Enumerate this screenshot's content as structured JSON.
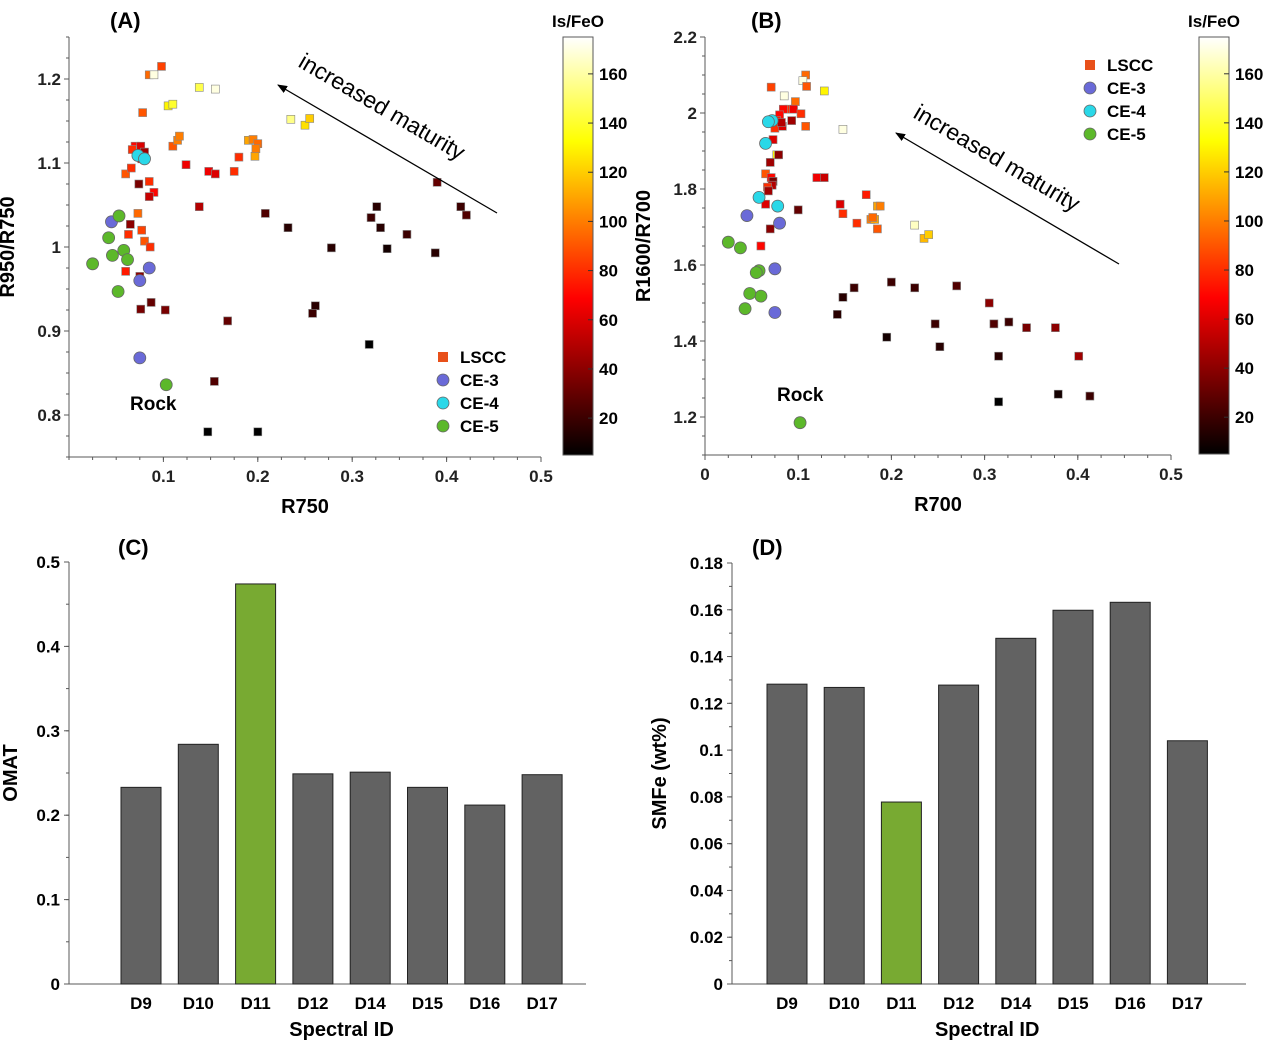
{
  "colors": {
    "bar_gray": "#626262",
    "bar_highlight": "#78aa32",
    "ce3": "#6a6ad8",
    "ce4": "#2ad8e8",
    "ce5": "#5cb82a",
    "rock": "#5cb82a",
    "axis": "#595959"
  },
  "chart_data": [
    {
      "panel_label": "(A)",
      "type": "scatter",
      "xlabel": "R750",
      "ylabel": "R950/R750",
      "xlim": [
        0,
        0.5
      ],
      "ylim": [
        0.75,
        1.25
      ],
      "xticks": [
        "0.1",
        "0.2",
        "0.3",
        "0.4",
        "0.5"
      ],
      "yticks": [
        "0.8",
        "0.9",
        "1",
        "1.1",
        "1.2"
      ],
      "grid": false,
      "legend": {
        "placement": "bottom-right",
        "entries": [
          "LSCC",
          "CE-3",
          "CE-4",
          "CE-5"
        ]
      },
      "colorbar": {
        "title": "Is/FeO",
        "range": [
          5,
          175
        ],
        "ticks": [
          "20",
          "40",
          "60",
          "80",
          "100",
          "120",
          "140",
          "160"
        ]
      },
      "annotations": {
        "arrow_text": "increased maturity",
        "rock_label": "Rock"
      },
      "series": [
        {
          "name": "LSCC",
          "marker": "square",
          "points": [
            [
              0.098,
              1.215,
              85
            ],
            [
              0.085,
              1.205,
              95
            ],
            [
              0.09,
              1.205,
              170
            ],
            [
              0.078,
              1.16,
              90
            ],
            [
              0.07,
              1.12,
              70
            ],
            [
              0.085,
              1.078,
              80
            ],
            [
              0.09,
              1.065,
              70
            ],
            [
              0.06,
              1.087,
              90
            ],
            [
              0.066,
              1.094,
              80
            ],
            [
              0.067,
              1.116,
              80
            ],
            [
              0.076,
              1.12,
              60
            ],
            [
              0.08,
              1.113,
              45
            ],
            [
              0.077,
              1.105,
              60
            ],
            [
              0.085,
              1.06,
              55
            ],
            [
              0.074,
              1.075,
              35
            ],
            [
              0.073,
              1.04,
              95
            ],
            [
              0.077,
              1.02,
              85
            ],
            [
              0.065,
              1.027,
              40
            ],
            [
              0.063,
              1.015,
              80
            ],
            [
              0.08,
              1.007,
              90
            ],
            [
              0.086,
              1.0,
              80
            ],
            [
              0.06,
              0.971,
              75
            ],
            [
              0.075,
              0.965,
              40
            ],
            [
              0.076,
              0.926,
              35
            ],
            [
              0.087,
              0.934,
              30
            ],
            [
              0.102,
              0.925,
              35
            ],
            [
              0.11,
              1.12,
              90
            ],
            [
              0.115,
              1.127,
              100
            ],
            [
              0.117,
              1.132,
              100
            ],
            [
              0.105,
              1.168,
              130
            ],
            [
              0.11,
              1.17,
              140
            ],
            [
              0.138,
              1.19,
              145
            ],
            [
              0.155,
              1.188,
              170
            ],
            [
              0.124,
              1.098,
              65
            ],
            [
              0.138,
              1.048,
              50
            ],
            [
              0.148,
              1.09,
              65
            ],
            [
              0.155,
              1.087,
              60
            ],
            [
              0.175,
              1.09,
              80
            ],
            [
              0.18,
              1.107,
              80
            ],
            [
              0.19,
              1.127,
              110
            ],
            [
              0.197,
              1.108,
              110
            ],
            [
              0.195,
              1.128,
              100
            ],
            [
              0.2,
              1.123,
              95
            ],
            [
              0.198,
              1.117,
              100
            ],
            [
              0.235,
              1.152,
              155
            ],
            [
              0.25,
              1.145,
              125
            ],
            [
              0.255,
              1.153,
              120
            ],
            [
              0.208,
              1.04,
              25
            ],
            [
              0.232,
              1.023,
              15
            ],
            [
              0.278,
              0.999,
              15
            ],
            [
              0.326,
              1.048,
              15
            ],
            [
              0.32,
              1.035,
              20
            ],
            [
              0.33,
              1.023,
              15
            ],
            [
              0.337,
              0.998,
              10
            ],
            [
              0.358,
              1.015,
              20
            ],
            [
              0.39,
              1.077,
              30
            ],
            [
              0.415,
              1.048,
              20
            ],
            [
              0.421,
              1.038,
              25
            ],
            [
              0.388,
              0.993,
              15
            ],
            [
              0.261,
              0.93,
              15
            ],
            [
              0.258,
              0.921,
              20
            ],
            [
              0.168,
              0.912,
              30
            ],
            [
              0.154,
              0.84,
              25
            ],
            [
              0.318,
              0.884,
              5
            ],
            [
              0.147,
              0.78,
              5
            ],
            [
              0.2,
              0.78,
              5
            ]
          ]
        },
        {
          "name": "CE-3",
          "marker": "circle",
          "points": [
            [
              0.045,
              1.03
            ],
            [
              0.085,
              0.975
            ],
            [
              0.075,
              0.96
            ],
            [
              0.075,
              0.868
            ]
          ]
        },
        {
          "name": "CE-4",
          "marker": "circle",
          "points": [
            [
              0.073,
              1.109
            ],
            [
              0.08,
              1.105
            ]
          ]
        },
        {
          "name": "CE-5",
          "marker": "circle",
          "points": [
            [
              0.053,
              1.037
            ],
            [
              0.042,
              1.011
            ],
            [
              0.058,
              0.996
            ],
            [
              0.046,
              0.99
            ],
            [
              0.062,
              0.985
            ],
            [
              0.025,
              0.98
            ],
            [
              0.052,
              0.947
            ]
          ]
        },
        {
          "name": "Rock",
          "marker": "circle",
          "points": [
            [
              0.103,
              0.836
            ]
          ]
        }
      ]
    },
    {
      "panel_label": "(B)",
      "type": "scatter",
      "xlabel": "R700",
      "ylabel": "R1600/R700",
      "xlim": [
        0,
        0.5
      ],
      "ylim": [
        1.1,
        2.2
      ],
      "xticks": [
        "0",
        "0.1",
        "0.2",
        "0.3",
        "0.4",
        "0.5"
      ],
      "yticks": [
        "1.2",
        "1.4",
        "1.6",
        "1.8",
        "2",
        "2.2"
      ],
      "grid": false,
      "legend": {
        "placement": "top-right",
        "entries": [
          "LSCC",
          "CE-3",
          "CE-4",
          "CE-5"
        ]
      },
      "colorbar": {
        "title": "Is/FeO",
        "range": [
          5,
          175
        ],
        "ticks": [
          "20",
          "40",
          "60",
          "80",
          "100",
          "120",
          "140",
          "160"
        ]
      },
      "annotations": {
        "arrow_text": "increased maturity",
        "rock_label": "Rock"
      },
      "series": [
        {
          "name": "LSCC",
          "marker": "square",
          "points": [
            [
              0.108,
              2.1,
              95
            ],
            [
              0.105,
              2.085,
              170
            ],
            [
              0.109,
              2.07,
              90
            ],
            [
              0.097,
              2.03,
              95
            ],
            [
              0.128,
              2.058,
              130
            ],
            [
              0.085,
              2.045,
              170
            ],
            [
              0.071,
              2.068,
              85
            ],
            [
              0.09,
              2.01,
              80
            ],
            [
              0.084,
              2.01,
              70
            ],
            [
              0.095,
              2.01,
              65
            ],
            [
              0.08,
              1.995,
              70
            ],
            [
              0.077,
              1.98,
              75
            ],
            [
              0.075,
              1.96,
              80
            ],
            [
              0.083,
              1.965,
              60
            ],
            [
              0.073,
              1.93,
              60
            ],
            [
              0.082,
              1.975,
              50
            ],
            [
              0.093,
              1.98,
              45
            ],
            [
              0.103,
              1.998,
              80
            ],
            [
              0.108,
              1.965,
              90
            ],
            [
              0.148,
              1.957,
              170
            ],
            [
              0.077,
              1.89,
              130
            ],
            [
              0.079,
              1.89,
              40
            ],
            [
              0.07,
              1.87,
              45
            ],
            [
              0.065,
              1.84,
              90
            ],
            [
              0.071,
              1.83,
              70
            ],
            [
              0.073,
              1.82,
              35
            ],
            [
              0.072,
              1.81,
              50
            ],
            [
              0.067,
              1.805,
              80
            ],
            [
              0.068,
              1.795,
              45
            ],
            [
              0.065,
              1.76,
              60
            ],
            [
              0.07,
              1.695,
              40
            ],
            [
              0.06,
              1.65,
              70
            ],
            [
              0.1,
              1.745,
              30
            ],
            [
              0.12,
              1.83,
              65
            ],
            [
              0.128,
              1.83,
              55
            ],
            [
              0.145,
              1.76,
              60
            ],
            [
              0.148,
              1.735,
              80
            ],
            [
              0.163,
              1.71,
              80
            ],
            [
              0.173,
              1.785,
              75
            ],
            [
              0.178,
              1.72,
              100
            ],
            [
              0.182,
              1.72,
              110
            ],
            [
              0.185,
              1.755,
              110
            ],
            [
              0.188,
              1.755,
              100
            ],
            [
              0.185,
              1.695,
              90
            ],
            [
              0.18,
              1.725,
              95
            ],
            [
              0.225,
              1.705,
              165
            ],
            [
              0.235,
              1.67,
              115
            ],
            [
              0.24,
              1.68,
              120
            ],
            [
              0.142,
              1.47,
              15
            ],
            [
              0.148,
              1.515,
              15
            ],
            [
              0.16,
              1.54,
              20
            ],
            [
              0.2,
              1.555,
              20
            ],
            [
              0.195,
              1.41,
              10
            ],
            [
              0.225,
              1.54,
              20
            ],
            [
              0.247,
              1.445,
              20
            ],
            [
              0.252,
              1.385,
              15
            ],
            [
              0.27,
              1.545,
              25
            ],
            [
              0.305,
              1.5,
              40
            ],
            [
              0.31,
              1.445,
              25
            ],
            [
              0.326,
              1.45,
              20
            ],
            [
              0.315,
              1.36,
              15
            ],
            [
              0.345,
              1.435,
              35
            ],
            [
              0.376,
              1.435,
              40
            ],
            [
              0.401,
              1.36,
              45
            ],
            [
              0.315,
              1.24,
              5
            ],
            [
              0.379,
              1.26,
              10
            ],
            [
              0.413,
              1.255,
              20
            ]
          ]
        },
        {
          "name": "CE-3",
          "marker": "circle",
          "points": [
            [
              0.045,
              1.73
            ],
            [
              0.08,
              1.71
            ],
            [
              0.075,
              1.59
            ],
            [
              0.075,
              1.475
            ]
          ]
        },
        {
          "name": "CE-4",
          "marker": "circle",
          "points": [
            [
              0.072,
              1.98
            ],
            [
              0.068,
              1.977
            ],
            [
              0.065,
              1.92
            ],
            [
              0.058,
              1.778
            ],
            [
              0.078,
              1.755
            ]
          ]
        },
        {
          "name": "CE-5",
          "marker": "circle",
          "points": [
            [
              0.025,
              1.66
            ],
            [
              0.038,
              1.645
            ],
            [
              0.058,
              1.585
            ],
            [
              0.055,
              1.58
            ],
            [
              0.06,
              1.518
            ],
            [
              0.048,
              1.525
            ],
            [
              0.043,
              1.485
            ]
          ]
        },
        {
          "name": "Rock",
          "marker": "circle",
          "points": [
            [
              0.102,
              1.185
            ]
          ]
        }
      ]
    },
    {
      "panel_label": "(C)",
      "type": "bar",
      "xlabel": "Spectral ID",
      "ylabel": "OMAT",
      "ylim": [
        0,
        0.5
      ],
      "yticks": [
        "0",
        "0.1",
        "0.2",
        "0.3",
        "0.4",
        "0.5"
      ],
      "categories": [
        "D9",
        "D10",
        "D11",
        "D12",
        "D14",
        "D15",
        "D16",
        "D17"
      ],
      "values": [
        0.233,
        0.284,
        0.474,
        0.249,
        0.251,
        0.233,
        0.212,
        0.248
      ],
      "highlight": "D11",
      "grid": false
    },
    {
      "panel_label": "(D)",
      "type": "bar",
      "xlabel": "Spectral ID",
      "ylabel": "SMFe (wt%)",
      "ylim": [
        0,
        0.18
      ],
      "yticks": [
        "0",
        "0.02",
        "0.04",
        "0.06",
        "0.08",
        "0.1",
        "0.12",
        "0.14",
        "0.16",
        "0.18"
      ],
      "categories": [
        "D9",
        "D10",
        "D11",
        "D12",
        "D14",
        "D15",
        "D16",
        "D17"
      ],
      "values": [
        0.1282,
        0.1268,
        0.0778,
        0.1278,
        0.1478,
        0.1598,
        0.1632,
        0.104
      ],
      "highlight": "D11",
      "grid": false
    }
  ]
}
